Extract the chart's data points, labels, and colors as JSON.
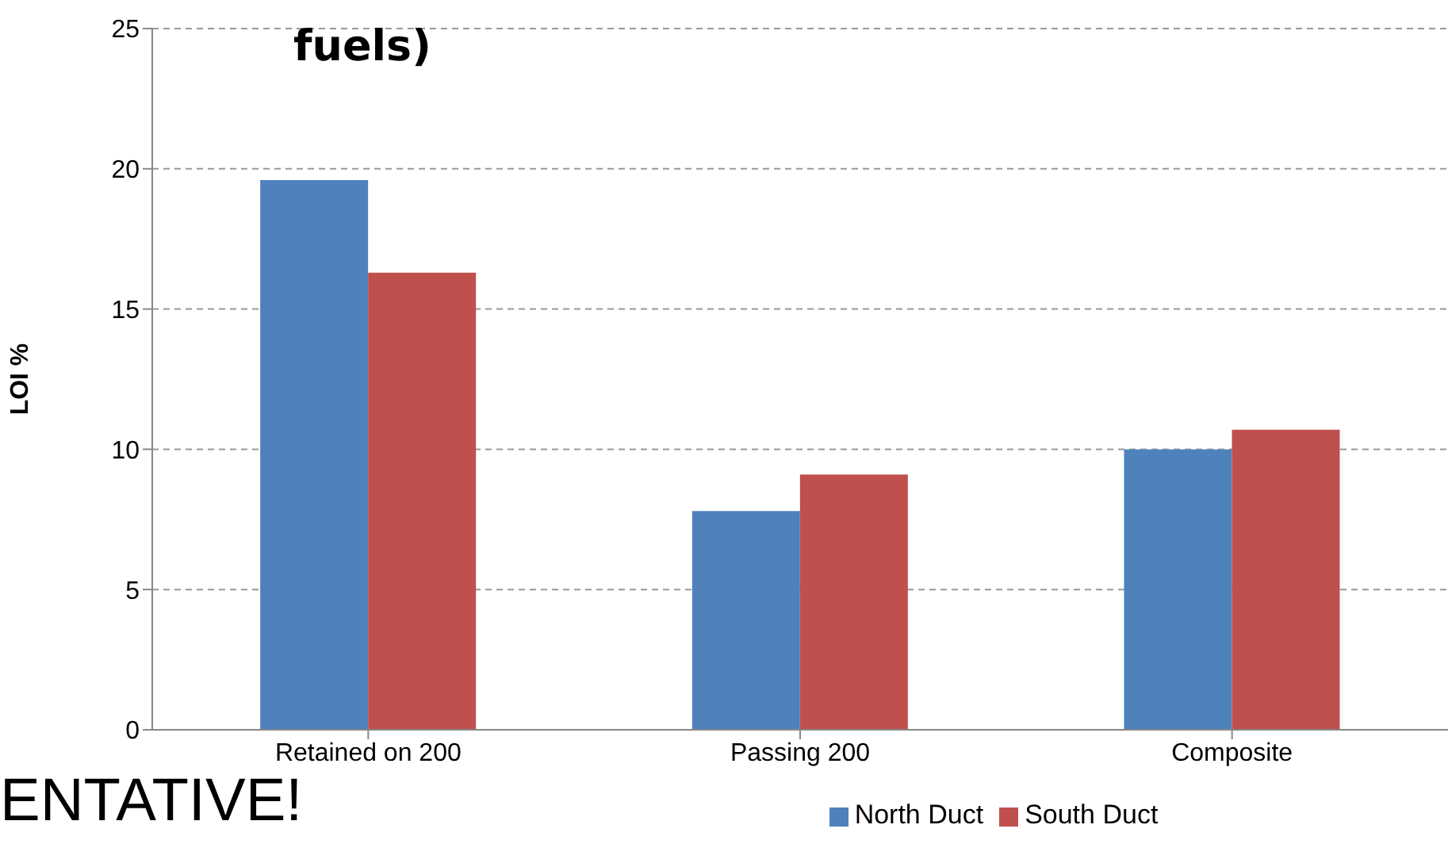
{
  "chart_data": {
    "type": "bar",
    "title": "fuels)",
    "ylabel": "LOI %",
    "categories": [
      "Retained on 200",
      "Passing 200",
      "Composite"
    ],
    "series": [
      {
        "name": "North Duct",
        "color": "#4f81bd",
        "values": [
          19.6,
          7.8,
          10.0
        ]
      },
      {
        "name": "South Duct",
        "color": "#c0504d",
        "values": [
          16.3,
          9.1,
          10.7
        ]
      }
    ],
    "ylim": [
      0,
      25
    ],
    "yticks": [
      0,
      5,
      10,
      15,
      20,
      25
    ],
    "grid": "y",
    "legend": "bottom",
    "annotations": [
      "ENTATIVE!"
    ]
  }
}
